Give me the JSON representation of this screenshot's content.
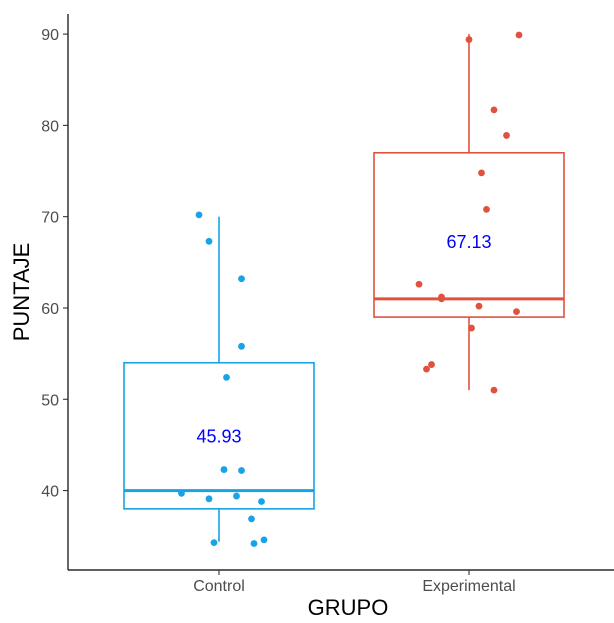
{
  "chart_data": {
    "type": "boxplot",
    "xlabel": "GRUPO",
    "ylabel": "PUNTAJE",
    "ylim": [
      31.3,
      92.2
    ],
    "yticks": [
      40,
      50,
      60,
      70,
      80,
      90
    ],
    "ytick_labels": [
      "40",
      "50",
      "60",
      "70",
      "80",
      "90"
    ],
    "categories": [
      "Control",
      "Experimental"
    ],
    "grid": false,
    "legend": "none",
    "mean_label_color": "#0000ff",
    "groups": [
      {
        "name": "Control",
        "color": "#17a3e6",
        "whisker_low": 34.4,
        "q1": 38.0,
        "median": 40.0,
        "q3": 54.0,
        "whisker_high": 70.0,
        "mean_label": "45.93",
        "mean_label_y": 45.9,
        "points": [
          {
            "x": 0.92,
            "y": 70.2
          },
          {
            "x": 0.96,
            "y": 67.3
          },
          {
            "x": 1.09,
            "y": 63.2
          },
          {
            "x": 1.09,
            "y": 55.8
          },
          {
            "x": 1.03,
            "y": 52.4
          },
          {
            "x": 1.02,
            "y": 42.3
          },
          {
            "x": 1.09,
            "y": 42.2
          },
          {
            "x": 0.85,
            "y": 39.7
          },
          {
            "x": 0.96,
            "y": 39.1
          },
          {
            "x": 1.07,
            "y": 39.4
          },
          {
            "x": 1.17,
            "y": 38.8
          },
          {
            "x": 1.13,
            "y": 36.9
          },
          {
            "x": 0.98,
            "y": 34.3
          },
          {
            "x": 1.14,
            "y": 34.2
          },
          {
            "x": 1.18,
            "y": 34.6
          }
        ]
      },
      {
        "name": "Experimental",
        "color": "#e0523e",
        "whisker_low": 51.0,
        "q1": 59.0,
        "median": 61.0,
        "q3": 77.0,
        "whisker_high": 90.0,
        "mean_label": "67.13",
        "mean_label_y": 67.2,
        "points": [
          {
            "x": 2.0,
            "y": 89.4
          },
          {
            "x": 2.2,
            "y": 89.9
          },
          {
            "x": 2.1,
            "y": 81.7
          },
          {
            "x": 2.15,
            "y": 78.9
          },
          {
            "x": 2.05,
            "y": 74.8
          },
          {
            "x": 2.07,
            "y": 70.8
          },
          {
            "x": 1.8,
            "y": 62.6
          },
          {
            "x": 1.89,
            "y": 61.2
          },
          {
            "x": 1.89,
            "y": 61.0
          },
          {
            "x": 2.04,
            "y": 60.2
          },
          {
            "x": 2.19,
            "y": 59.6
          },
          {
            "x": 2.01,
            "y": 57.8
          },
          {
            "x": 1.85,
            "y": 53.8
          },
          {
            "x": 1.83,
            "y": 53.3
          },
          {
            "x": 2.1,
            "y": 51.0
          }
        ]
      }
    ]
  }
}
